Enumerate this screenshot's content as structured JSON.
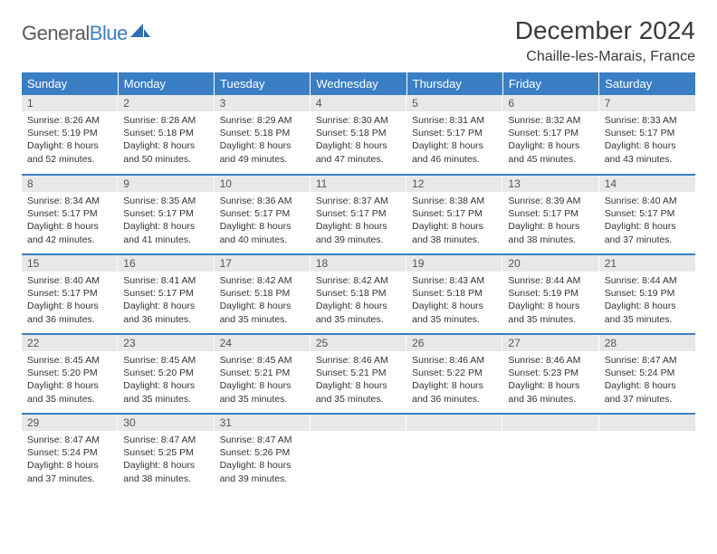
{
  "logo": {
    "word1": "General",
    "word2": "Blue"
  },
  "title": "December 2024",
  "location": "Chaille-les-Marais, France",
  "colors": {
    "header_bg": "#3a7fc4",
    "header_text": "#ffffff",
    "daynum_bg": "#e8e8e8",
    "row_divider": "#3a7fc4",
    "body_text": "#333333",
    "title_text": "#3a3a3a"
  },
  "weekdays": [
    "Sunday",
    "Monday",
    "Tuesday",
    "Wednesday",
    "Thursday",
    "Friday",
    "Saturday"
  ],
  "first_weekday_index": 0,
  "days": [
    {
      "n": 1,
      "sunrise": "8:26 AM",
      "sunset": "5:19 PM",
      "dl_h": 8,
      "dl_m": 52
    },
    {
      "n": 2,
      "sunrise": "8:28 AM",
      "sunset": "5:18 PM",
      "dl_h": 8,
      "dl_m": 50
    },
    {
      "n": 3,
      "sunrise": "8:29 AM",
      "sunset": "5:18 PM",
      "dl_h": 8,
      "dl_m": 49
    },
    {
      "n": 4,
      "sunrise": "8:30 AM",
      "sunset": "5:18 PM",
      "dl_h": 8,
      "dl_m": 47
    },
    {
      "n": 5,
      "sunrise": "8:31 AM",
      "sunset": "5:17 PM",
      "dl_h": 8,
      "dl_m": 46
    },
    {
      "n": 6,
      "sunrise": "8:32 AM",
      "sunset": "5:17 PM",
      "dl_h": 8,
      "dl_m": 45
    },
    {
      "n": 7,
      "sunrise": "8:33 AM",
      "sunset": "5:17 PM",
      "dl_h": 8,
      "dl_m": 43
    },
    {
      "n": 8,
      "sunrise": "8:34 AM",
      "sunset": "5:17 PM",
      "dl_h": 8,
      "dl_m": 42
    },
    {
      "n": 9,
      "sunrise": "8:35 AM",
      "sunset": "5:17 PM",
      "dl_h": 8,
      "dl_m": 41
    },
    {
      "n": 10,
      "sunrise": "8:36 AM",
      "sunset": "5:17 PM",
      "dl_h": 8,
      "dl_m": 40
    },
    {
      "n": 11,
      "sunrise": "8:37 AM",
      "sunset": "5:17 PM",
      "dl_h": 8,
      "dl_m": 39
    },
    {
      "n": 12,
      "sunrise": "8:38 AM",
      "sunset": "5:17 PM",
      "dl_h": 8,
      "dl_m": 38
    },
    {
      "n": 13,
      "sunrise": "8:39 AM",
      "sunset": "5:17 PM",
      "dl_h": 8,
      "dl_m": 38
    },
    {
      "n": 14,
      "sunrise": "8:40 AM",
      "sunset": "5:17 PM",
      "dl_h": 8,
      "dl_m": 37
    },
    {
      "n": 15,
      "sunrise": "8:40 AM",
      "sunset": "5:17 PM",
      "dl_h": 8,
      "dl_m": 36
    },
    {
      "n": 16,
      "sunrise": "8:41 AM",
      "sunset": "5:17 PM",
      "dl_h": 8,
      "dl_m": 36
    },
    {
      "n": 17,
      "sunrise": "8:42 AM",
      "sunset": "5:18 PM",
      "dl_h": 8,
      "dl_m": 35
    },
    {
      "n": 18,
      "sunrise": "8:42 AM",
      "sunset": "5:18 PM",
      "dl_h": 8,
      "dl_m": 35
    },
    {
      "n": 19,
      "sunrise": "8:43 AM",
      "sunset": "5:18 PM",
      "dl_h": 8,
      "dl_m": 35
    },
    {
      "n": 20,
      "sunrise": "8:44 AM",
      "sunset": "5:19 PM",
      "dl_h": 8,
      "dl_m": 35
    },
    {
      "n": 21,
      "sunrise": "8:44 AM",
      "sunset": "5:19 PM",
      "dl_h": 8,
      "dl_m": 35
    },
    {
      "n": 22,
      "sunrise": "8:45 AM",
      "sunset": "5:20 PM",
      "dl_h": 8,
      "dl_m": 35
    },
    {
      "n": 23,
      "sunrise": "8:45 AM",
      "sunset": "5:20 PM",
      "dl_h": 8,
      "dl_m": 35
    },
    {
      "n": 24,
      "sunrise": "8:45 AM",
      "sunset": "5:21 PM",
      "dl_h": 8,
      "dl_m": 35
    },
    {
      "n": 25,
      "sunrise": "8:46 AM",
      "sunset": "5:21 PM",
      "dl_h": 8,
      "dl_m": 35
    },
    {
      "n": 26,
      "sunrise": "8:46 AM",
      "sunset": "5:22 PM",
      "dl_h": 8,
      "dl_m": 36
    },
    {
      "n": 27,
      "sunrise": "8:46 AM",
      "sunset": "5:23 PM",
      "dl_h": 8,
      "dl_m": 36
    },
    {
      "n": 28,
      "sunrise": "8:47 AM",
      "sunset": "5:24 PM",
      "dl_h": 8,
      "dl_m": 37
    },
    {
      "n": 29,
      "sunrise": "8:47 AM",
      "sunset": "5:24 PM",
      "dl_h": 8,
      "dl_m": 37
    },
    {
      "n": 30,
      "sunrise": "8:47 AM",
      "sunset": "5:25 PM",
      "dl_h": 8,
      "dl_m": 38
    },
    {
      "n": 31,
      "sunrise": "8:47 AM",
      "sunset": "5:26 PM",
      "dl_h": 8,
      "dl_m": 39
    }
  ],
  "labels": {
    "sunrise": "Sunrise:",
    "sunset": "Sunset:",
    "daylight_prefix": "Daylight:",
    "hours_word": "hours",
    "and_word": "and",
    "minutes_word": "minutes."
  },
  "typography": {
    "title_fontsize": 28,
    "location_fontsize": 16,
    "weekday_fontsize": 13,
    "daynum_fontsize": 12,
    "cell_fontsize": 10.5
  }
}
